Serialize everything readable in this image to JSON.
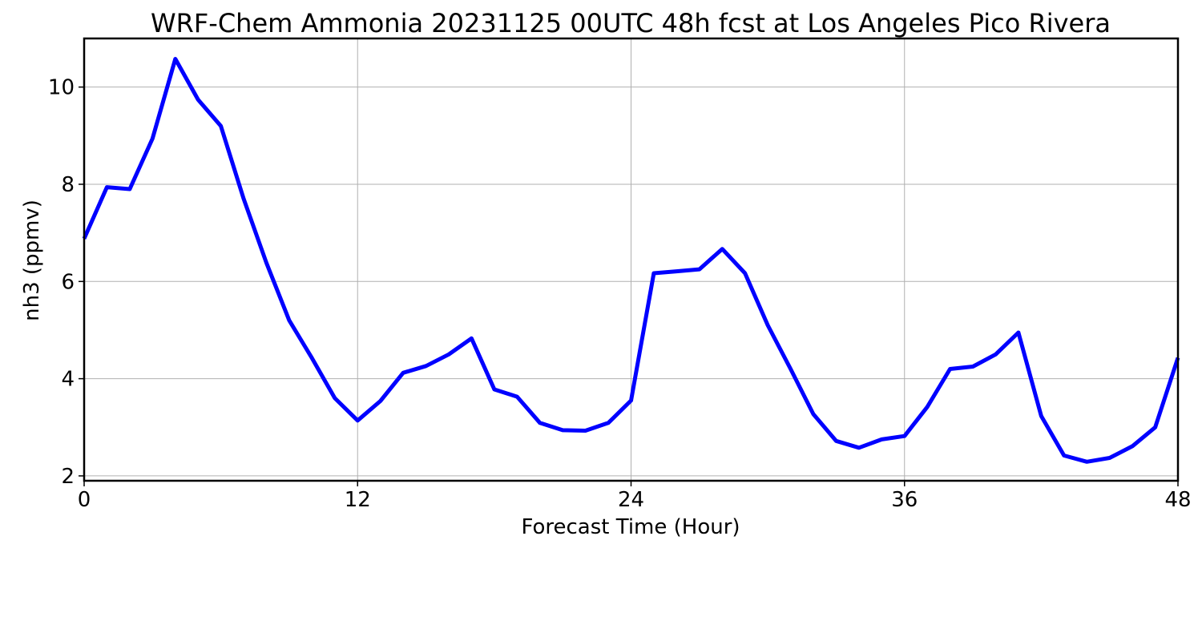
{
  "chart_data": {
    "type": "line",
    "title": "WRF-Chem Ammonia  20231125 00UTC 48h fcst at Los Angeles Pico Rivera",
    "xlabel": "Forecast Time (Hour)",
    "ylabel": "nh3  (ppmv)",
    "xlim": [
      0,
      48
    ],
    "ylim": [
      1.9,
      11.0
    ],
    "xticks": [
      0,
      12,
      24,
      36,
      48
    ],
    "yticks": [
      2,
      4,
      6,
      8,
      10
    ],
    "grid": true,
    "legend": "none",
    "series": [
      {
        "color": "#0000ff",
        "x": [
          0,
          1,
          2,
          3,
          4,
          5,
          6,
          7,
          8,
          9,
          10,
          11,
          12,
          13,
          14,
          15,
          16,
          17,
          18,
          19,
          20,
          21,
          22,
          23,
          24,
          25,
          26,
          27,
          28,
          29,
          30,
          31,
          32,
          33,
          34,
          35,
          36,
          37,
          38,
          39,
          40,
          41,
          42,
          43,
          44,
          45,
          46,
          47,
          48
        ],
        "values": [
          6.88,
          7.94,
          7.9,
          8.94,
          10.58,
          9.74,
          9.2,
          7.7,
          6.38,
          5.2,
          4.42,
          3.6,
          3.14,
          3.54,
          4.12,
          4.26,
          4.5,
          4.83,
          3.78,
          3.63,
          3.09,
          2.94,
          2.93,
          3.09,
          3.55,
          6.17,
          6.21,
          6.25,
          6.67,
          6.17,
          5.1,
          4.2,
          3.27,
          2.72,
          2.58,
          2.75,
          2.82,
          3.42,
          4.2,
          4.25,
          4.5,
          4.95,
          3.23,
          2.42,
          2.29,
          2.37,
          2.61,
          3.0,
          4.43
        ]
      }
    ]
  }
}
